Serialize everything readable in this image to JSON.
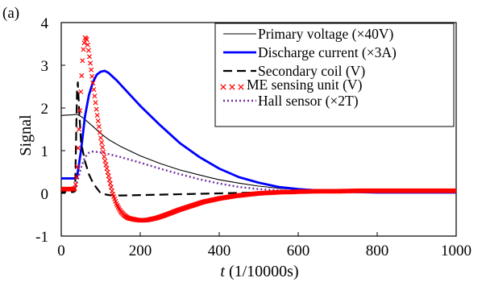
{
  "chart_data": {
    "type": "line",
    "panel_label": "(a)",
    "title": "",
    "xlabel": "(1/10000s)",
    "xlabel_var": "t",
    "ylabel": "Signal",
    "xlim": [
      0,
      1000
    ],
    "ylim": [
      -1,
      4
    ],
    "xticks": [
      0,
      200,
      400,
      600,
      800,
      1000
    ],
    "yticks": [
      -1,
      0,
      1,
      2,
      3,
      4
    ],
    "grid": false,
    "legend_position": "top-right",
    "series": [
      {
        "name": "Primary voltage (×40V)",
        "color": "#000000",
        "style": "solid-thin",
        "points": [
          [
            -10,
            1.82
          ],
          [
            30,
            1.84
          ],
          [
            38,
            1.85
          ],
          [
            40,
            1.85
          ],
          [
            50,
            1.8
          ],
          [
            60,
            1.73
          ],
          [
            80,
            1.57
          ],
          [
            100,
            1.4
          ],
          [
            120,
            1.26
          ],
          [
            150,
            1.1
          ],
          [
            200,
            0.88
          ],
          [
            250,
            0.7
          ],
          [
            300,
            0.55
          ],
          [
            350,
            0.43
          ],
          [
            400,
            0.32
          ],
          [
            450,
            0.24
          ],
          [
            500,
            0.17
          ],
          [
            550,
            0.12
          ],
          [
            600,
            0.09
          ],
          [
            650,
            0.07
          ],
          [
            700,
            0.05
          ],
          [
            800,
            0.04
          ],
          [
            900,
            0.04
          ],
          [
            1000,
            0.03
          ]
        ]
      },
      {
        "name": "Discharge current (×3A)",
        "color": "#0000ff",
        "style": "solid-thick",
        "points": [
          [
            -10,
            0.35
          ],
          [
            30,
            0.35
          ],
          [
            35,
            0.35
          ],
          [
            40,
            0.38
          ],
          [
            50,
            1.0
          ],
          [
            60,
            1.8
          ],
          [
            70,
            2.3
          ],
          [
            80,
            2.6
          ],
          [
            90,
            2.78
          ],
          [
            100,
            2.85
          ],
          [
            110,
            2.87
          ],
          [
            120,
            2.82
          ],
          [
            140,
            2.65
          ],
          [
            160,
            2.45
          ],
          [
            200,
            2.05
          ],
          [
            250,
            1.6
          ],
          [
            300,
            1.18
          ],
          [
            350,
            0.85
          ],
          [
            400,
            0.58
          ],
          [
            450,
            0.38
          ],
          [
            500,
            0.25
          ],
          [
            550,
            0.15
          ],
          [
            600,
            0.1
          ],
          [
            700,
            0.04
          ],
          [
            800,
            0.02
          ],
          [
            900,
            0.02
          ],
          [
            1000,
            0.02
          ]
        ]
      },
      {
        "name": "Secondary coil (V)",
        "color": "#000000",
        "style": "dashed",
        "points": [
          [
            -10,
            0.03
          ],
          [
            30,
            0.03
          ],
          [
            35,
            0.05
          ],
          [
            38,
            1.5
          ],
          [
            40,
            2.4
          ],
          [
            42,
            2.6
          ],
          [
            45,
            2.0
          ],
          [
            50,
            1.2
          ],
          [
            60,
            0.75
          ],
          [
            70,
            0.45
          ],
          [
            80,
            0.25
          ],
          [
            90,
            0.12
          ],
          [
            100,
            0.0
          ],
          [
            120,
            -0.04
          ],
          [
            150,
            -0.05
          ],
          [
            200,
            -0.04
          ],
          [
            300,
            -0.02
          ],
          [
            400,
            0.0
          ],
          [
            500,
            0.02
          ],
          [
            600,
            0.02
          ],
          [
            700,
            0.03
          ],
          [
            1000,
            0.03
          ]
        ]
      },
      {
        "name": "ME sensing unit (V)",
        "color": "#ff0000",
        "style": "x-markers",
        "points": [
          [
            -10,
            0.1
          ],
          [
            0,
            0.1
          ],
          [
            10,
            0.1
          ],
          [
            20,
            0.1
          ],
          [
            30,
            0.1
          ],
          [
            35,
            0.12
          ],
          [
            40,
            0.5
          ],
          [
            45,
            1.5
          ],
          [
            50,
            2.5
          ],
          [
            55,
            3.3
          ],
          [
            60,
            3.65
          ],
          [
            65,
            3.6
          ],
          [
            70,
            3.3
          ],
          [
            80,
            2.6
          ],
          [
            90,
            1.9
          ],
          [
            100,
            1.3
          ],
          [
            110,
            0.8
          ],
          [
            120,
            0.4
          ],
          [
            130,
            0.0
          ],
          [
            140,
            -0.25
          ],
          [
            150,
            -0.42
          ],
          [
            160,
            -0.52
          ],
          [
            170,
            -0.58
          ],
          [
            180,
            -0.6
          ],
          [
            190,
            -0.62
          ],
          [
            200,
            -0.63
          ],
          [
            210,
            -0.63
          ],
          [
            220,
            -0.62
          ],
          [
            240,
            -0.58
          ],
          [
            260,
            -0.52
          ],
          [
            280,
            -0.45
          ],
          [
            300,
            -0.38
          ],
          [
            320,
            -0.32
          ],
          [
            340,
            -0.26
          ],
          [
            360,
            -0.2
          ],
          [
            380,
            -0.16
          ],
          [
            400,
            -0.12
          ],
          [
            420,
            -0.09
          ],
          [
            440,
            -0.06
          ],
          [
            460,
            -0.04
          ],
          [
            480,
            -0.02
          ],
          [
            500,
            0.0
          ],
          [
            520,
            0.01
          ],
          [
            540,
            0.02
          ],
          [
            560,
            0.03
          ],
          [
            580,
            0.03
          ],
          [
            600,
            0.04
          ],
          [
            650,
            0.05
          ],
          [
            700,
            0.05
          ],
          [
            750,
            0.06
          ],
          [
            800,
            0.06
          ],
          [
            850,
            0.06
          ],
          [
            900,
            0.06
          ],
          [
            950,
            0.06
          ],
          [
            1000,
            0.06
          ]
        ]
      },
      {
        "name": "Hall sensor (×2T)",
        "color": "#7030a0",
        "style": "dotted",
        "points": [
          [
            -10,
            0.08
          ],
          [
            30,
            0.08
          ],
          [
            35,
            0.1
          ],
          [
            40,
            0.25
          ],
          [
            50,
            0.6
          ],
          [
            60,
            0.85
          ],
          [
            70,
            0.95
          ],
          [
            80,
            0.98
          ],
          [
            90,
            0.97
          ],
          [
            100,
            0.96
          ],
          [
            120,
            0.92
          ],
          [
            150,
            0.85
          ],
          [
            200,
            0.72
          ],
          [
            250,
            0.58
          ],
          [
            300,
            0.45
          ],
          [
            350,
            0.33
          ],
          [
            400,
            0.23
          ],
          [
            450,
            0.15
          ],
          [
            500,
            0.1
          ],
          [
            550,
            0.07
          ],
          [
            600,
            0.05
          ],
          [
            700,
            0.04
          ],
          [
            800,
            0.03
          ],
          [
            1000,
            0.03
          ]
        ]
      }
    ]
  }
}
